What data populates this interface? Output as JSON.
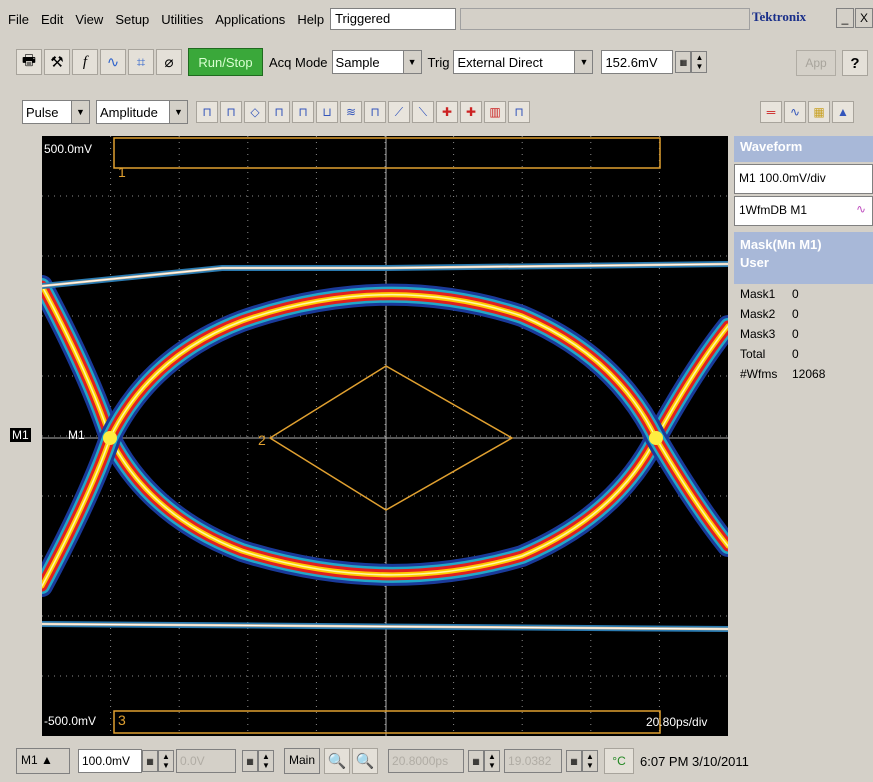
{
  "menu": {
    "items": [
      "File",
      "Edit",
      "View",
      "Setup",
      "Utilities",
      "Applications",
      "Help"
    ],
    "status_text": "Triggered",
    "brand": "Tektronix",
    "minimize_label": "_",
    "close_label": "X"
  },
  "toolbar1": {
    "run_stop_label": "Run/Stop",
    "acq_mode_label": "Acq Mode",
    "acq_mode_value": "Sample",
    "trig_label": "Trig",
    "trig_value": "External Direct",
    "trig_level": "152.6mV",
    "app_label": "App",
    "help_label": "?"
  },
  "toolbar2": {
    "measure_type_value": "Pulse",
    "measure_param_value": "Amplitude"
  },
  "scope": {
    "top_label": "500.0mV",
    "bottom_label": "-500.0mV",
    "timebase_label": "20.80ps/div",
    "mask_region_1": "1",
    "mask_region_2": "2",
    "mask_region_3": "3",
    "channel_marker": "M1",
    "channel_tag": "M1"
  },
  "right_panel": {
    "waveform_header": "Waveform",
    "scale_text": "M1 100.0mV/div",
    "source_text": "1WfmDB M1",
    "mask_header_line1": "Mask(Mn M1)",
    "mask_header_line2": "User",
    "rows": [
      {
        "name": "Mask1",
        "value": "0"
      },
      {
        "name": "Mask2",
        "value": "0"
      },
      {
        "name": "Mask3",
        "value": "0"
      },
      {
        "name": "Total",
        "value": "0"
      },
      {
        "name": "#Wfms",
        "value": "12068"
      }
    ]
  },
  "bottom": {
    "channel": "M1",
    "vscale": "100.0mV",
    "offset": "0.0V",
    "main_label": "Main",
    "horiz_pos": "20.8000ps",
    "record": "19.0382",
    "temp_unit": "°C",
    "datetime": "6:07 PM 3/10/2011"
  },
  "colors": {
    "accent_green": "#3aa83a",
    "panel_header": "#a8b8d8",
    "grid_color": "#9a9a9a",
    "mask_color": "#e0a030"
  }
}
